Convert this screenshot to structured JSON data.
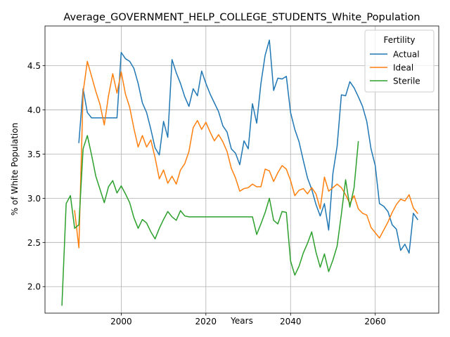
{
  "chart_data": {
    "type": "line",
    "title": "Average_GOVERNMENT_HELP_COLLEGE_STUDENTS_White_Population",
    "xlabel": "Years",
    "ylabel": "% of White Population",
    "xlim": [
      1982,
      2075
    ],
    "ylim": [
      1.7,
      4.95
    ],
    "x_ticks": [
      2000,
      2020,
      2040,
      2060
    ],
    "y_ticks": [
      2.0,
      2.5,
      3.0,
      3.5,
      4.0,
      4.5
    ],
    "x_tick_labels": [
      "2000",
      "2020",
      "2040",
      "2060"
    ],
    "y_tick_labels": [
      "2.0",
      "2.5",
      "3.0",
      "3.5",
      "4.0",
      "4.5"
    ],
    "grid": true,
    "legend": {
      "title": "Fertility",
      "position": "top-right"
    },
    "series": [
      {
        "name": "Actual",
        "color": "#1f77b4",
        "points": [
          [
            1990,
            3.63
          ],
          [
            1991,
            4.24
          ],
          [
            1992,
            3.97
          ],
          [
            1993,
            3.91
          ],
          [
            1994,
            3.91
          ],
          [
            1995,
            3.91
          ],
          [
            1996,
            3.91
          ],
          [
            1997,
            3.91
          ],
          [
            1998,
            3.91
          ],
          [
            1999,
            3.91
          ],
          [
            2000,
            4.65
          ],
          [
            2001,
            4.58
          ],
          [
            2002,
            4.55
          ],
          [
            2003,
            4.47
          ],
          [
            2004,
            4.3
          ],
          [
            2005,
            4.08
          ],
          [
            2006,
            3.97
          ],
          [
            2007,
            3.78
          ],
          [
            2008,
            3.57
          ],
          [
            2009,
            3.49
          ],
          [
            2010,
            3.87
          ],
          [
            2011,
            3.69
          ],
          [
            2012,
            4.57
          ],
          [
            2013,
            4.42
          ],
          [
            2014,
            4.3
          ],
          [
            2015,
            4.15
          ],
          [
            2016,
            4.04
          ],
          [
            2017,
            4.24
          ],
          [
            2018,
            4.16
          ],
          [
            2019,
            4.44
          ],
          [
            2020,
            4.3
          ],
          [
            2021,
            4.18
          ],
          [
            2022,
            4.08
          ],
          [
            2023,
            3.98
          ],
          [
            2024,
            3.82
          ],
          [
            2025,
            3.75
          ],
          [
            2026,
            3.56
          ],
          [
            2027,
            3.51
          ],
          [
            2028,
            3.38
          ],
          [
            2029,
            3.65
          ],
          [
            2030,
            3.56
          ],
          [
            2031,
            4.07
          ],
          [
            2032,
            3.85
          ],
          [
            2033,
            4.3
          ],
          [
            2034,
            4.62
          ],
          [
            2035,
            4.79
          ],
          [
            2036,
            4.22
          ],
          [
            2037,
            4.36
          ],
          [
            2038,
            4.35
          ],
          [
            2039,
            4.38
          ],
          [
            2040,
            3.97
          ],
          [
            2041,
            3.78
          ],
          [
            2042,
            3.64
          ],
          [
            2043,
            3.43
          ],
          [
            2044,
            3.23
          ],
          [
            2045,
            3.1
          ],
          [
            2046,
            2.93
          ],
          [
            2047,
            2.8
          ],
          [
            2048,
            2.94
          ],
          [
            2049,
            2.64
          ],
          [
            2050,
            3.28
          ],
          [
            2051,
            3.59
          ],
          [
            2052,
            4.17
          ],
          [
            2053,
            4.16
          ],
          [
            2054,
            4.32
          ],
          [
            2055,
            4.25
          ],
          [
            2056,
            4.15
          ],
          [
            2057,
            4.04
          ],
          [
            2058,
            3.87
          ],
          [
            2059,
            3.56
          ],
          [
            2060,
            3.37
          ],
          [
            2061,
            2.94
          ],
          [
            2062,
            2.91
          ],
          [
            2063,
            2.85
          ],
          [
            2064,
            2.7
          ],
          [
            2065,
            2.65
          ],
          [
            2066,
            2.41
          ],
          [
            2067,
            2.48
          ],
          [
            2068,
            2.38
          ],
          [
            2069,
            2.83
          ],
          [
            2070,
            2.76
          ]
        ]
      },
      {
        "name": "Ideal",
        "color": "#ff7f0e",
        "points": [
          [
            1989,
            2.86
          ],
          [
            1990,
            2.44
          ],
          [
            1991,
            4.2
          ],
          [
            1992,
            4.55
          ],
          [
            1993,
            4.38
          ],
          [
            1994,
            4.21
          ],
          [
            1995,
            4.06
          ],
          [
            1996,
            3.83
          ],
          [
            1997,
            4.16
          ],
          [
            1998,
            4.41
          ],
          [
            1999,
            4.19
          ],
          [
            2000,
            4.43
          ],
          [
            2001,
            4.18
          ],
          [
            2002,
            4.03
          ],
          [
            2003,
            3.79
          ],
          [
            2004,
            3.58
          ],
          [
            2005,
            3.71
          ],
          [
            2006,
            3.58
          ],
          [
            2007,
            3.66
          ],
          [
            2008,
            3.46
          ],
          [
            2009,
            3.22
          ],
          [
            2010,
            3.32
          ],
          [
            2011,
            3.17
          ],
          [
            2012,
            3.25
          ],
          [
            2013,
            3.16
          ],
          [
            2014,
            3.32
          ],
          [
            2015,
            3.39
          ],
          [
            2016,
            3.53
          ],
          [
            2017,
            3.8
          ],
          [
            2018,
            3.88
          ],
          [
            2019,
            3.78
          ],
          [
            2020,
            3.86
          ],
          [
            2021,
            3.75
          ],
          [
            2022,
            3.65
          ],
          [
            2023,
            3.72
          ],
          [
            2024,
            3.64
          ],
          [
            2025,
            3.53
          ],
          [
            2026,
            3.34
          ],
          [
            2027,
            3.23
          ],
          [
            2028,
            3.08
          ],
          [
            2029,
            3.11
          ],
          [
            2030,
            3.12
          ],
          [
            2031,
            3.16
          ],
          [
            2032,
            3.13
          ],
          [
            2033,
            3.13
          ],
          [
            2034,
            3.33
          ],
          [
            2035,
            3.31
          ],
          [
            2036,
            3.19
          ],
          [
            2037,
            3.29
          ],
          [
            2038,
            3.37
          ],
          [
            2039,
            3.33
          ],
          [
            2040,
            3.2
          ],
          [
            2041,
            3.03
          ],
          [
            2042,
            3.09
          ],
          [
            2043,
            3.11
          ],
          [
            2044,
            3.05
          ],
          [
            2045,
            3.12
          ],
          [
            2046,
            3.05
          ],
          [
            2047,
            2.88
          ],
          [
            2048,
            3.24
          ],
          [
            2049,
            3.08
          ],
          [
            2050,
            3.12
          ],
          [
            2051,
            3.16
          ],
          [
            2052,
            3.12
          ],
          [
            2053,
            3.04
          ],
          [
            2054,
            2.94
          ],
          [
            2055,
            3.03
          ],
          [
            2056,
            2.88
          ],
          [
            2057,
            2.83
          ],
          [
            2058,
            2.81
          ],
          [
            2059,
            2.67
          ],
          [
            2060,
            2.61
          ],
          [
            2061,
            2.55
          ],
          [
            2062,
            2.64
          ],
          [
            2063,
            2.73
          ],
          [
            2064,
            2.84
          ],
          [
            2065,
            2.93
          ],
          [
            2066,
            2.99
          ],
          [
            2067,
            2.97
          ],
          [
            2068,
            3.04
          ],
          [
            2069,
            2.89
          ],
          [
            2070,
            2.83
          ]
        ]
      },
      {
        "name": "Sterile",
        "color": "#2ca02c",
        "points": [
          [
            1986,
            1.79
          ],
          [
            1987,
            2.94
          ],
          [
            1988,
            3.03
          ],
          [
            1989,
            2.66
          ],
          [
            1990,
            2.7
          ],
          [
            1991,
            3.56
          ],
          [
            1992,
            3.71
          ],
          [
            1993,
            3.49
          ],
          [
            1994,
            3.25
          ],
          [
            1995,
            3.1
          ],
          [
            1996,
            2.95
          ],
          [
            1997,
            3.13
          ],
          [
            1998,
            3.2
          ],
          [
            1999,
            3.06
          ],
          [
            2000,
            3.14
          ],
          [
            2001,
            3.05
          ],
          [
            2002,
            2.95
          ],
          [
            2003,
            2.78
          ],
          [
            2004,
            2.66
          ],
          [
            2005,
            2.76
          ],
          [
            2006,
            2.72
          ],
          [
            2007,
            2.62
          ],
          [
            2008,
            2.54
          ],
          [
            2009,
            2.66
          ],
          [
            2010,
            2.76
          ],
          [
            2011,
            2.85
          ],
          [
            2012,
            2.79
          ],
          [
            2013,
            2.75
          ],
          [
            2014,
            2.86
          ],
          [
            2015,
            2.8
          ],
          [
            2016,
            2.79
          ],
          [
            2017,
            2.79
          ],
          [
            2018,
            2.79
          ],
          [
            2019,
            2.79
          ],
          [
            2020,
            2.79
          ],
          [
            2021,
            2.79
          ],
          [
            2022,
            2.79
          ],
          [
            2023,
            2.79
          ],
          [
            2024,
            2.79
          ],
          [
            2025,
            2.79
          ],
          [
            2026,
            2.79
          ],
          [
            2027,
            2.79
          ],
          [
            2028,
            2.79
          ],
          [
            2029,
            2.79
          ],
          [
            2030,
            2.79
          ],
          [
            2031,
            2.79
          ],
          [
            2032,
            2.59
          ],
          [
            2033,
            2.71
          ],
          [
            2034,
            2.84
          ],
          [
            2035,
            3.0
          ],
          [
            2036,
            2.75
          ],
          [
            2037,
            2.71
          ],
          [
            2038,
            2.85
          ],
          [
            2039,
            2.84
          ],
          [
            2040,
            2.29
          ],
          [
            2041,
            2.13
          ],
          [
            2042,
            2.23
          ],
          [
            2043,
            2.38
          ],
          [
            2044,
            2.49
          ],
          [
            2045,
            2.62
          ],
          [
            2046,
            2.39
          ],
          [
            2047,
            2.22
          ],
          [
            2048,
            2.37
          ],
          [
            2049,
            2.17
          ],
          [
            2050,
            2.3
          ],
          [
            2051,
            2.46
          ],
          [
            2052,
            2.82
          ],
          [
            2053,
            3.21
          ],
          [
            2054,
            2.9
          ],
          [
            2055,
            3.12
          ],
          [
            2056,
            3.64
          ]
        ]
      }
    ]
  }
}
